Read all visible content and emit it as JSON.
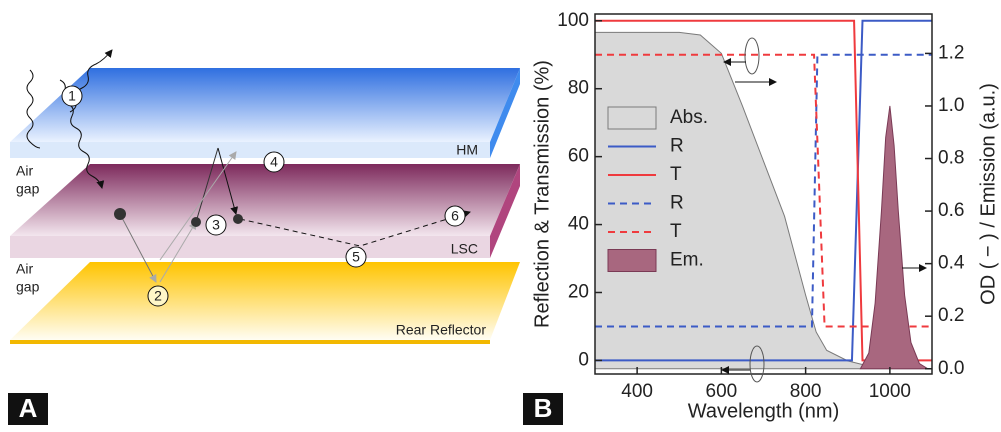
{
  "panel_a": {
    "letter": "A",
    "steps": [
      "1",
      "2",
      "3",
      "4",
      "5",
      "6"
    ],
    "top_layer": "HM",
    "middle_layer": "LSC",
    "bottom_layer": "Rear Reflector",
    "air_gap_upper": [
      "Air",
      "gap"
    ],
    "air_gap_lower": [
      "Air",
      "gap"
    ]
  },
  "chart_data": {
    "type": "line",
    "panel_letter": "B",
    "x_label": "Wavelength (nm)",
    "y_label": "Reflection & Transmission (%)",
    "y2_label": "OD ( − )  /  Emission (a.u.)",
    "xlim": [
      300,
      1100
    ],
    "xticks": [
      400,
      600,
      800,
      1000
    ],
    "ylim": [
      -4,
      102
    ],
    "yticks": [
      0,
      20,
      40,
      60,
      80,
      100
    ],
    "y2lim": [
      -0.02,
      1.35
    ],
    "y2ticks": [
      {
        "value": 0,
        "label": "0.0"
      },
      {
        "value": 0.2,
        "label": "0.2"
      },
      {
        "value": 0.4,
        "label": "0.4"
      },
      {
        "value": 0.6,
        "label": "0.6"
      },
      {
        "value": 0.8,
        "label": "0.8"
      },
      {
        "value": 1,
        "label": "1.0"
      },
      {
        "value": 1.2,
        "label": "1.2"
      }
    ],
    "series": [
      {
        "name": "Abs.",
        "kind": "area",
        "axis": "y2",
        "color": "#d9d9d9",
        "edge": "#7a7a7a",
        "x": [
          300,
          400,
          500,
          550,
          600,
          650,
          700,
          750,
          800,
          825,
          850,
          900,
          950,
          1000,
          1100
        ],
        "values": [
          1.28,
          1.28,
          1.28,
          1.27,
          1.2,
          1.0,
          0.79,
          0.58,
          0.28,
          0.14,
          0.07,
          0.03,
          0.01,
          0.005,
          0
        ]
      },
      {
        "name": "R",
        "kind": "line",
        "color": "#3c5bc6",
        "dashed": false,
        "x": [
          300,
          910,
          935,
          1100
        ],
        "values": [
          0,
          0,
          100,
          100
        ]
      },
      {
        "name": "T",
        "kind": "line",
        "color": "#ef3a3e",
        "dashed": false,
        "x": [
          300,
          915,
          935,
          1100
        ],
        "values": [
          100,
          100,
          0,
          0
        ]
      },
      {
        "name": "R",
        "kind": "line",
        "color": "#3c5bc6",
        "dashed": true,
        "x": [
          300,
          815,
          828,
          1100
        ],
        "values": [
          10,
          10,
          90,
          90
        ]
      },
      {
        "name": "T",
        "kind": "line",
        "color": "#ef3a3e",
        "dashed": true,
        "x": [
          300,
          820,
          845,
          1100
        ],
        "values": [
          90,
          90,
          10,
          10
        ]
      },
      {
        "name": "Em.",
        "kind": "area",
        "axis": "y2",
        "color": "#a8677f",
        "edge": "#7a3a55",
        "x": [
          930,
          950,
          965,
          980,
          990,
          1000,
          1010,
          1020,
          1035,
          1050,
          1070,
          1090
        ],
        "values": [
          0,
          0.06,
          0.25,
          0.6,
          0.88,
          1.0,
          0.85,
          0.6,
          0.28,
          0.1,
          0.02,
          0
        ]
      }
    ]
  }
}
